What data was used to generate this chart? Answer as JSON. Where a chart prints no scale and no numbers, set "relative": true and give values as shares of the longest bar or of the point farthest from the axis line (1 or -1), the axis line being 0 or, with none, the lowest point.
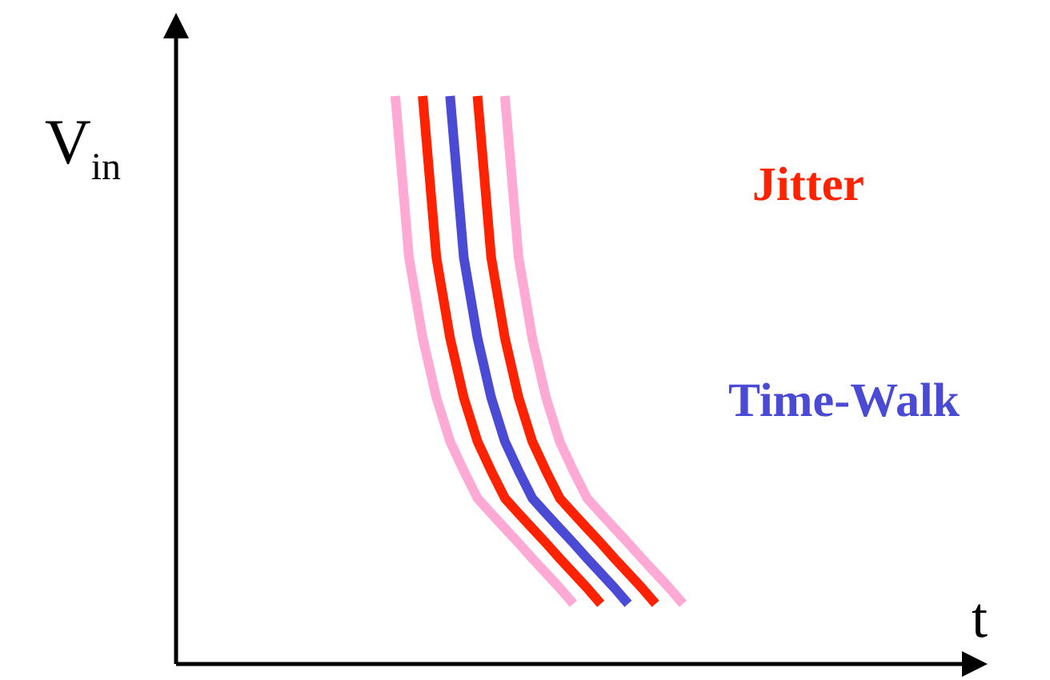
{
  "chart_data": {
    "type": "line",
    "relative": true,
    "xlabel": "t",
    "ylabel": "V$_{in}$",
    "line_style": "solid",
    "annotations": [
      "Jitter",
      "Time-Walk"
    ],
    "categories": [
      null,
      null,
      null,
      null,
      null,
      null,
      null,
      null,
      null,
      null,
      null,
      null,
      null,
      null,
      null,
      null,
      null,
      null,
      null,
      null,
      null,
      null,
      null,
      null,
      null,
      null,
      null,
      null,
      null,
      null,
      null,
      null,
      null,
      null,
      null,
      null,
      null,
      null,
      null,
      null,
      null,
      null,
      null,
      null,
      null,
      null,
      null,
      null,
      null,
      null,
      null,
      null,
      null,
      null,
      null,
      null,
      null,
      null,
      null,
      null
    ],
    "series": [
      {
        "color": "#ffaad4",
        "values": [
          null,
          null,
          null,
          null,
          null,
          null,
          null,
          null,
          null,
          null,
          null,
          null,
          null,
          null,
          null,
          null,
          1,
          0.716,
          0.574,
          0.469,
          0.392,
          0.34,
          0.292,
          0.265,
          0.239,
          0.213,
          0.186,
          0.16,
          0.134,
          0.106,
          null,
          null,
          null,
          null,
          null,
          null,
          null,
          null,
          null,
          null,
          null,
          null,
          null,
          null,
          null,
          null,
          null,
          null,
          null,
          null,
          null,
          null,
          null,
          null,
          null,
          null,
          null,
          null,
          null,
          null
        ]
      },
      {
        "color": "#ff2200",
        "values": [
          null,
          null,
          null,
          null,
          null,
          null,
          null,
          null,
          null,
          null,
          null,
          null,
          null,
          null,
          null,
          null,
          null,
          null,
          1,
          0.716,
          0.574,
          0.469,
          0.392,
          0.34,
          0.292,
          0.265,
          0.239,
          0.213,
          0.186,
          0.16,
          0.134,
          0.106,
          null,
          null,
          null,
          null,
          null,
          null,
          null,
          null,
          null,
          null,
          null,
          null,
          null,
          null,
          null,
          null,
          null,
          null,
          null,
          null,
          null,
          null,
          null,
          null,
          null,
          null,
          null,
          null
        ]
      },
      {
        "color": "#4a4ad4",
        "values": [
          null,
          null,
          null,
          null,
          null,
          null,
          null,
          null,
          null,
          null,
          null,
          null,
          null,
          null,
          null,
          null,
          null,
          null,
          null,
          null,
          1,
          0.716,
          0.574,
          0.469,
          0.392,
          0.34,
          0.292,
          0.265,
          0.239,
          0.213,
          0.186,
          0.16,
          0.134,
          0.106,
          null,
          null,
          null,
          null,
          null,
          null,
          null,
          null,
          null,
          null,
          null,
          null,
          null,
          null,
          null,
          null,
          null,
          null,
          null,
          null,
          null,
          null,
          null,
          null,
          null,
          null
        ]
      },
      {
        "color": "#ff2200",
        "values": [
          null,
          null,
          null,
          null,
          null,
          null,
          null,
          null,
          null,
          null,
          null,
          null,
          null,
          null,
          null,
          null,
          null,
          null,
          null,
          null,
          null,
          null,
          1,
          0.716,
          0.574,
          0.469,
          0.392,
          0.34,
          0.292,
          0.265,
          0.239,
          0.213,
          0.186,
          0.16,
          0.134,
          0.106,
          null,
          null,
          null,
          null,
          null,
          null,
          null,
          null,
          null,
          null,
          null,
          null,
          null,
          null,
          null,
          null,
          null,
          null,
          null,
          null,
          null,
          null,
          null,
          null
        ]
      },
      {
        "color": "#ffaad4",
        "values": [
          null,
          null,
          null,
          null,
          null,
          null,
          null,
          null,
          null,
          null,
          null,
          null,
          null,
          null,
          null,
          null,
          null,
          null,
          null,
          null,
          null,
          null,
          null,
          null,
          1,
          0.716,
          0.574,
          0.469,
          0.392,
          0.34,
          0.292,
          0.265,
          0.239,
          0.213,
          0.186,
          0.16,
          0.134,
          0.106,
          null,
          null,
          null,
          null,
          null,
          null,
          null,
          null,
          null,
          null,
          null,
          null,
          null,
          null,
          null,
          null,
          null,
          null,
          null,
          null,
          null,
          null
        ]
      }
    ]
  }
}
